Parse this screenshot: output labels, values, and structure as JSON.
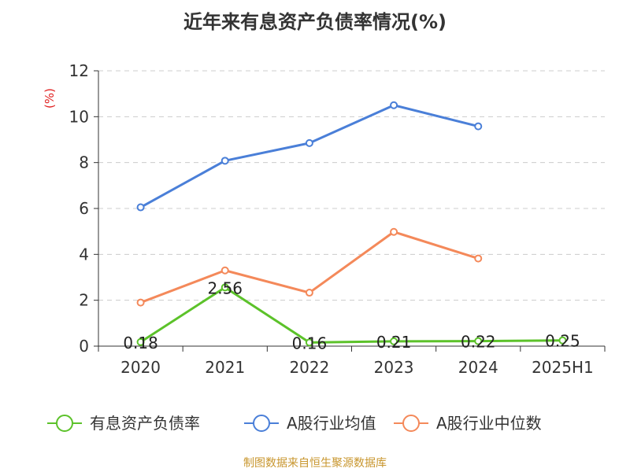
{
  "title": "近年来有息资产负债率情况(%)",
  "source": "制图数据来自恒生聚源数据库",
  "chart_data": {
    "type": "line",
    "title": "近年来有息资产负债率情况(%)",
    "ylabel": "(%)",
    "xlabel": "",
    "categories": [
      "2020",
      "2021",
      "2022",
      "2023",
      "2024",
      "2025H1"
    ],
    "ylim": [
      0,
      12
    ],
    "yticks": [
      0,
      2,
      4,
      6,
      8,
      10,
      12
    ],
    "grid": true,
    "legend_position": "bottom",
    "series": [
      {
        "name": "有息资产负债率",
        "color": "#5cc22a",
        "values": [
          0.18,
          2.56,
          0.16,
          0.21,
          0.22,
          0.25
        ],
        "labels": [
          "0.18",
          "2.56",
          "0.16",
          "0.21",
          "0.22",
          "0.25"
        ]
      },
      {
        "name": "A股行业均值",
        "color": "#4a7fd8",
        "values": [
          6.05,
          8.08,
          8.85,
          10.5,
          9.58,
          null
        ]
      },
      {
        "name": "A股行业中位数",
        "color": "#f4895a",
        "values": [
          1.9,
          3.3,
          2.33,
          4.98,
          3.82,
          null
        ]
      }
    ]
  }
}
